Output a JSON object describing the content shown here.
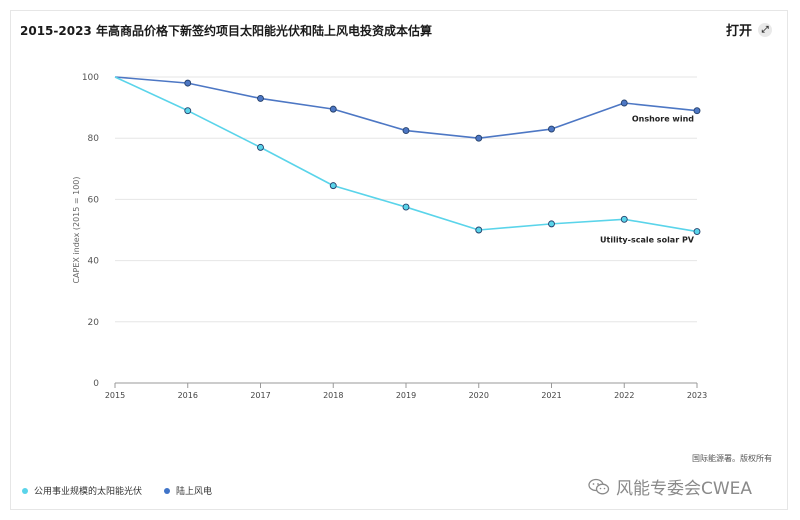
{
  "header": {
    "title": "2015-2023 年高商品价格下新签约项目太阳能光伏和陆上风电投资成本估算",
    "open_label": "打开"
  },
  "source_text": "国际能源署。版权所有",
  "legend": [
    {
      "label": "公用事业规模的太阳能光伏",
      "color": "#5ad4ea"
    },
    {
      "label": "陆上风电",
      "color": "#3f74c8"
    }
  ],
  "watermark_text": "风能专委会CWEA",
  "colors": {
    "solar": "#5ad4ea",
    "wind": "#4d77c4"
  },
  "chart_data": {
    "type": "line",
    "x": [
      2015,
      2016,
      2017,
      2018,
      2019,
      2020,
      2021,
      2022,
      2023
    ],
    "series": [
      {
        "name": "Onshore wind",
        "values": [
          100,
          98,
          93,
          89.5,
          82.5,
          80,
          83,
          91.5,
          89
        ]
      },
      {
        "name": "Utility-scale solar PV",
        "values": [
          100,
          89,
          77,
          64.5,
          57.5,
          50,
          52,
          53.5,
          49.5
        ]
      }
    ],
    "title": "2015-2023 年高商品价格下新签约项目太阳能光伏和陆上风电投资成本估算",
    "xlabel": "",
    "ylabel": "CAPEX index (2015 = 100)",
    "ylim": [
      0,
      100
    ],
    "yticks": [
      0,
      20,
      40,
      60,
      80,
      100
    ],
    "grid": true,
    "legend": "bottom-left"
  }
}
